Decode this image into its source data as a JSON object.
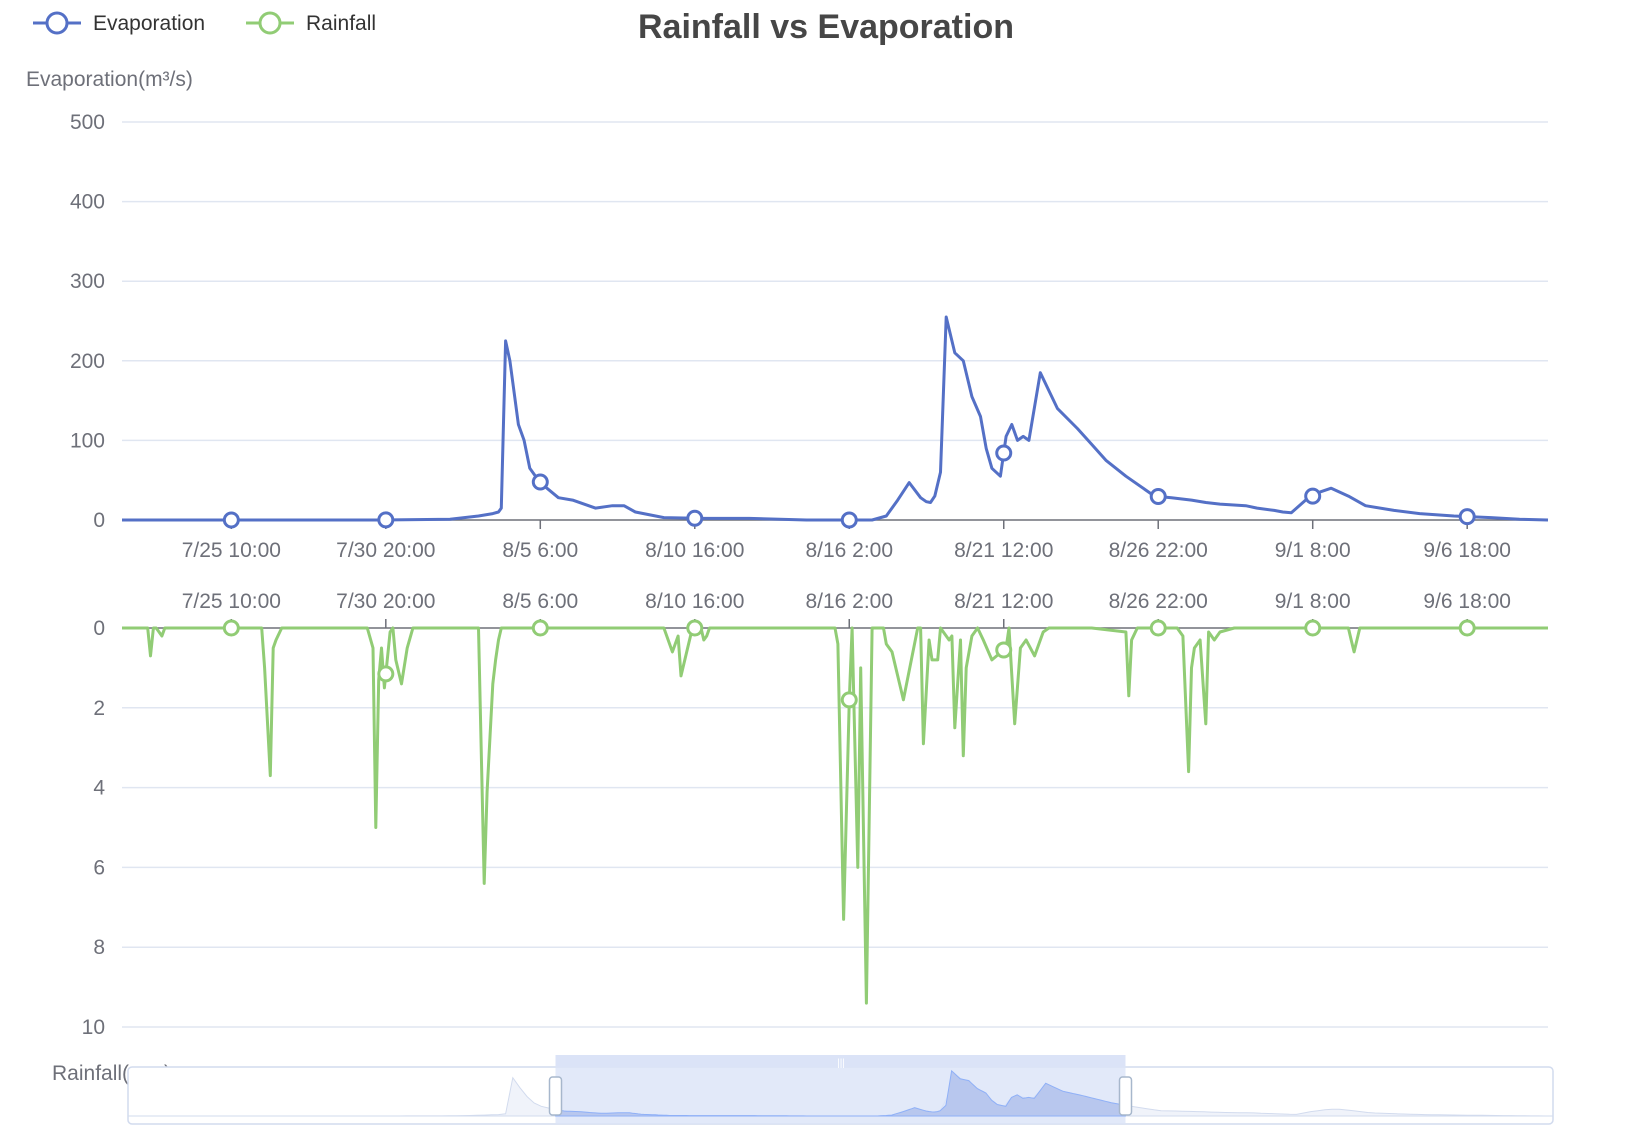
{
  "chart_data": {
    "type": "line",
    "title": "Rainfall vs Evaporation",
    "legend": {
      "placement": "top-left",
      "items": [
        {
          "name": "Evaporation",
          "color": "#5470c6",
          "icon": "circle-line-icon"
        },
        {
          "name": "Rainfall",
          "color": "#91cc75",
          "icon": "circle-line-icon"
        }
      ]
    },
    "x": {
      "type": "time",
      "range": [
        "7/21 14:00",
        "9/10 14:00"
      ],
      "tick_labels": [
        "7/25 10:00",
        "7/30 20:00",
        "8/5 6:00",
        "8/10 16:00",
        "8/16 2:00",
        "8/21 12:00",
        "8/26 22:00",
        "9/1 8:00",
        "9/6 18:00"
      ]
    },
    "top_axis": {
      "name": "Evaporation(m³/s)",
      "ylim": [
        0,
        500
      ],
      "ticks": [
        "0",
        "100",
        "200",
        "300",
        "400",
        "500"
      ],
      "grid": true
    },
    "bottom_axis": {
      "name": "Rainfall(mm)",
      "ylim": [
        0,
        10
      ],
      "inverse": true,
      "ticks": [
        "0",
        "2",
        "4",
        "6",
        "8",
        "10"
      ],
      "grid": true
    },
    "series": [
      {
        "name": "Evaporation",
        "color": "#5470c6",
        "x_days": [
          0,
          4,
          9,
          11.5,
          12.5,
          13,
          13.2,
          13.3,
          13.45,
          13.6,
          13.9,
          14.1,
          14.3,
          14.6,
          14.9,
          15.3,
          15.8,
          16.6,
          17.2,
          17.6,
          18,
          19,
          20.4,
          22,
          24,
          25.8,
          26.3,
          26.8,
          27.2,
          27.6,
          28,
          28.2,
          28.35,
          28.5,
          28.7,
          28.9,
          29.2,
          29.5,
          29.8,
          30.1,
          30.3,
          30.5,
          30.8,
          31,
          31.2,
          31.4,
          31.6,
          31.8,
          32.2,
          32.8,
          33.5,
          34,
          34.5,
          35.2,
          36.2,
          36.8,
          37.5,
          38,
          38.5,
          39.4,
          39.8,
          40.4,
          40.7,
          41,
          41.5,
          42,
          42.4,
          43,
          43.6,
          44.6,
          45.5,
          46.7,
          48,
          49,
          50
        ],
        "values": [
          0,
          0,
          0,
          1,
          5,
          8,
          10,
          15,
          225,
          200,
          120,
          100,
          65,
          50,
          40,
          28,
          25,
          15,
          18,
          18,
          10,
          3,
          2,
          2,
          0,
          0,
          0,
          5,
          25,
          47,
          28,
          23,
          22,
          30,
          60,
          255,
          210,
          200,
          155,
          130,
          90,
          65,
          55,
          105,
          120,
          100,
          105,
          100,
          185,
          140,
          115,
          95,
          75,
          55,
          30,
          28,
          25,
          22,
          20,
          18,
          15,
          12,
          10,
          9,
          25,
          35,
          40,
          30,
          18,
          12,
          8,
          5,
          3,
          1,
          0
        ]
      },
      {
        "name": "Rainfall",
        "color": "#91cc75",
        "x_days": [
          0,
          0.9,
          1,
          1.1,
          1.2,
          1.4,
          1.5,
          1.7,
          2,
          4.9,
          5,
          5.2,
          5.3,
          5.4,
          5.6,
          6,
          8.6,
          8.8,
          8.9,
          9,
          9.1,
          9.2,
          9.4,
          9.5,
          9.6,
          9.8,
          10,
          10.2,
          10.4,
          10.6,
          10.8,
          11,
          12.5,
          12.7,
          12.8,
          13,
          13.1,
          13.2,
          13.3,
          13.5,
          13.8,
          14,
          19,
          19.3,
          19.5,
          19.6,
          20,
          20.3,
          20.4,
          20.5,
          20.6,
          21,
          25,
          25.1,
          25.3,
          25.5,
          25.6,
          25.8,
          25.9,
          26.1,
          26.3,
          26.4,
          26.6,
          26.7,
          26.8,
          27,
          27.4,
          27.9,
          28,
          28.1,
          28.3,
          28.4,
          28.6,
          28.7,
          29,
          29.1,
          29.2,
          29.4,
          29.5,
          29.6,
          29.8,
          30,
          30.2,
          30.5,
          31,
          31.1,
          31.3,
          31.5,
          31.7,
          32,
          32.3,
          32.5,
          33,
          34,
          35.2,
          35.3,
          35.4,
          35.6,
          36,
          37,
          37.2,
          37.4,
          37.5,
          37.6,
          37.8,
          38,
          38.1,
          38.3,
          38.5,
          39,
          43,
          43.1,
          43.2,
          43.4,
          44,
          50
        ],
        "values": [
          0,
          0,
          0.7,
          0,
          0,
          0.2,
          0,
          0,
          0,
          0,
          1,
          3.7,
          0.5,
          0.3,
          0,
          0,
          0,
          0.5,
          5,
          1.3,
          0.5,
          1.5,
          0.1,
          0,
          0.8,
          1.4,
          0.5,
          0,
          0,
          0,
          0,
          0,
          0,
          6.4,
          4.1,
          1.4,
          0.8,
          0.3,
          0,
          0,
          0,
          0,
          0,
          0.6,
          0.2,
          1.2,
          0,
          0,
          0.3,
          0.2,
          0,
          0,
          0,
          0.4,
          7.3,
          1.8,
          0,
          6,
          1.0,
          9.4,
          0,
          0,
          0,
          0,
          0.4,
          0.6,
          1.8,
          0,
          0,
          2.9,
          0.3,
          0.8,
          0.8,
          0,
          0.3,
          0.2,
          2.5,
          0.3,
          3.2,
          1.0,
          0.2,
          0,
          0.3,
          0.8,
          0.5,
          0,
          2.4,
          0.5,
          0.3,
          0.7,
          0.1,
          0,
          0,
          0,
          0.1,
          1.7,
          0.3,
          0,
          0,
          0,
          0.2,
          3.6,
          1.0,
          0.5,
          0.3,
          2.4,
          0.1,
          0.3,
          0.1,
          0,
          0,
          0.3,
          0.6,
          0,
          0,
          0
        ]
      }
    ],
    "data_zoom": {
      "start": 30,
      "end": 70
    }
  }
}
